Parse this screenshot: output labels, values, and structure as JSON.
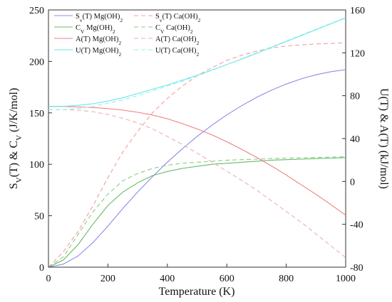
{
  "chart_data": {
    "type": "line",
    "xlabel": "Temperature (K)",
    "ylabel_left_parts": [
      "S",
      "V",
      "(T) & C",
      "V",
      " (J/K/mol)"
    ],
    "ylabel_right": "U(T) & A(T)  (kJ/mol)",
    "xlim": [
      0,
      1000
    ],
    "ylim_left": [
      0,
      250
    ],
    "ylim_right": [
      -80,
      160
    ],
    "xticks": [
      "0",
      "200",
      "400",
      "600",
      "800",
      "1000"
    ],
    "yticks_left": [
      "0",
      "50",
      "100",
      "150",
      "200",
      "250"
    ],
    "yticks_right": [
      "-80",
      "-40",
      "0",
      "40",
      "80",
      "120",
      "160"
    ],
    "legend": [
      {
        "pre": "S",
        "sub": "v",
        "mid": "(T) Mg(OH)",
        "sub2": "2"
      },
      {
        "pre": "S",
        "sub": "v",
        "mid": "(T) Ca(OH)",
        "sub2": "2"
      },
      {
        "pre": "C",
        "sub": "V",
        "mid": " Mg(OH)",
        "sub2": "2"
      },
      {
        "pre": "C",
        "sub": "V",
        "mid": " Ca(OH)",
        "sub2": "2"
      },
      {
        "pre": "A(T) Mg(OH)",
        "sub": "2",
        "mid": "",
        "sub2": ""
      },
      {
        "pre": "A(T) Ca(OH)",
        "sub": "2",
        "mid": "",
        "sub2": ""
      },
      {
        "pre": "U(T) Mg(OH)",
        "sub": "2",
        "mid": "",
        "sub2": ""
      },
      {
        "pre": "U(T) Ca(OH)",
        "sub": "2",
        "mid": "",
        "sub2": ""
      }
    ],
    "x": [
      0,
      50,
      100,
      150,
      200,
      250,
      300,
      350,
      400,
      450,
      500,
      550,
      600,
      650,
      700,
      750,
      800,
      850,
      900,
      950,
      1000
    ],
    "series": [
      {
        "axis": "left",
        "color": "#8c8ce8",
        "dash": false,
        "values": [
          0,
          3,
          11,
          24,
          40,
          57,
          73,
          88,
          102,
          115,
          127,
          138,
          148,
          157,
          165,
          172,
          178,
          183,
          187,
          190,
          192
        ]
      },
      {
        "axis": "left",
        "color": "#f0a0a0",
        "dash": true,
        "values": [
          0,
          15,
          35,
          60,
          87,
          112,
          132,
          150,
          164,
          176,
          186,
          194,
          201,
          206,
          210,
          213,
          215,
          216,
          217,
          217.5,
          218
        ]
      },
      {
        "axis": "left",
        "color": "#66bb66",
        "dash": false,
        "values": [
          0,
          7,
          22,
          42,
          60,
          73,
          82,
          89,
          93,
          96,
          98,
          100,
          101,
          102,
          103,
          104,
          104.5,
          105,
          105.5,
          106,
          106.5
        ]
      },
      {
        "axis": "left",
        "color": "#88cc88",
        "dash": true,
        "values": [
          0,
          10,
          32,
          54,
          71,
          84,
          91,
          96,
          99,
          101,
          102,
          103,
          104,
          104.5,
          105,
          105.5,
          106,
          106.3,
          106.6,
          107,
          107.3
        ]
      },
      {
        "axis": "right",
        "color": "#f08080",
        "dash": false,
        "values": [
          70,
          70,
          69.5,
          69,
          68,
          66.5,
          64.5,
          62,
          58.5,
          54,
          49,
          43.5,
          37,
          30,
          22.5,
          14.5,
          6,
          -3,
          -12,
          -21.5,
          -31.5
        ]
      },
      {
        "axis": "right",
        "color": "#f0b0b0",
        "dash": true,
        "values": [
          67,
          67,
          66.5,
          65,
          62.5,
          59,
          54.5,
          49,
          42,
          34.5,
          26.5,
          18,
          9.5,
          1,
          -8,
          -18,
          -28,
          -38,
          -49,
          -60,
          -71
        ]
      },
      {
        "axis": "right",
        "color": "#66e8e8",
        "dash": false,
        "values": [
          70,
          70,
          71,
          72.5,
          75,
          78,
          82,
          86,
          90,
          94.5,
          99,
          104,
          109,
          114,
          119.5,
          125,
          130.5,
          136,
          141.5,
          147,
          152.5
        ]
      },
      {
        "axis": "right",
        "color": "#99eeee",
        "dash": true,
        "values": [
          67,
          67,
          68,
          70,
          73,
          76,
          80,
          84.5,
          89,
          93.5,
          98.5,
          103.5,
          109,
          114.5,
          120,
          125.5,
          131,
          136.5,
          142,
          147.5,
          153
        ]
      }
    ]
  }
}
